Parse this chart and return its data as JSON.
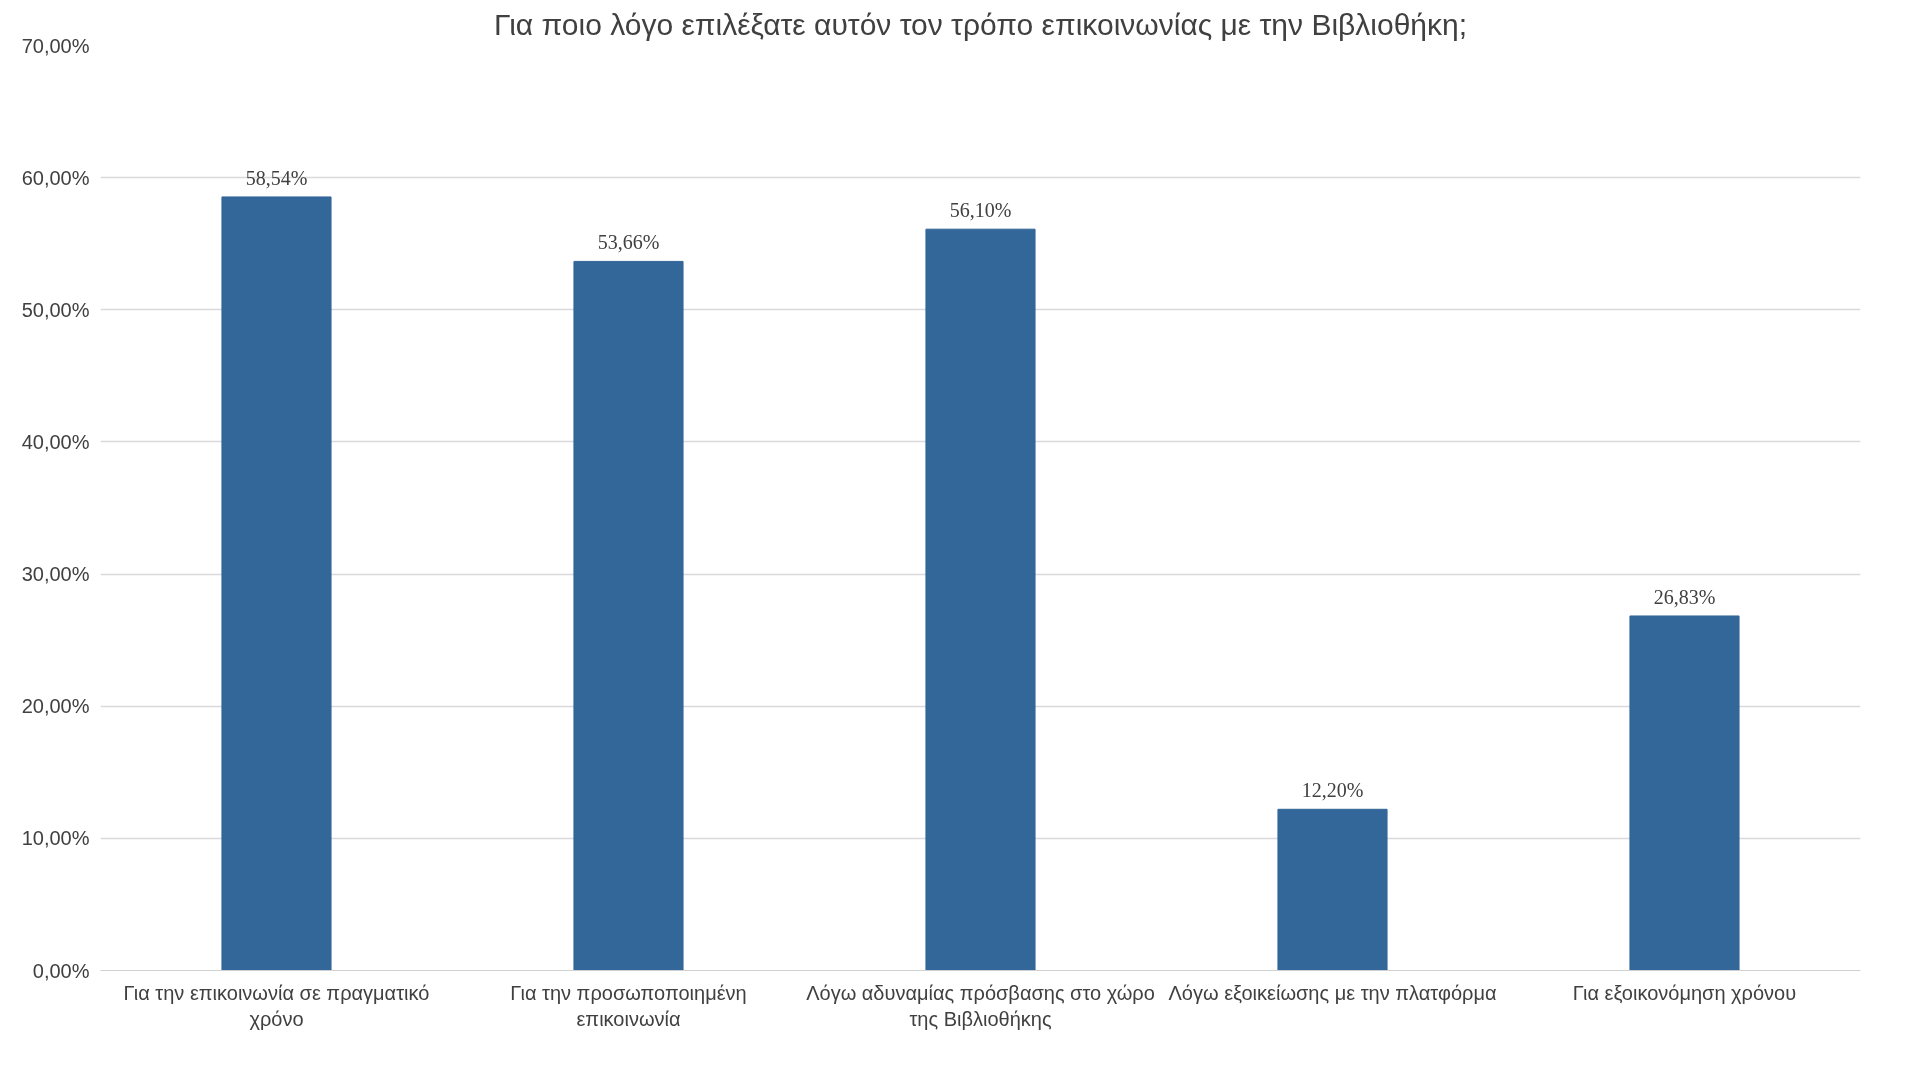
{
  "chart_data": {
    "type": "bar",
    "title": "Για ποιο λόγο επιλέξατε αυτόν τον τρόπο επικοινωνίας με την Βιβλιοθήκη;",
    "categories": [
      "Για την επικοινωνία σε πραγματικό χρόνο",
      "Για την προσωποποιημένη επικοινωνία",
      "Λόγω αδυναμίας πρόσβασης στο χώρο της Βιβλιοθήκης",
      "Λόγω εξοικείωσης με την πλατφόρμα",
      "Για εξοικονόμηση χρόνου"
    ],
    "values": [
      58.54,
      53.66,
      56.1,
      12.2,
      26.83
    ],
    "value_labels": [
      "58,54%",
      "53,66%",
      "56,10%",
      "12,20%",
      "26,83%"
    ],
    "color": "#336699",
    "ylim": [
      0,
      70
    ],
    "yticks": [
      {
        "value": 0,
        "label": "0,00%"
      },
      {
        "value": 10,
        "label": "10,00%"
      },
      {
        "value": 20,
        "label": "20,00%"
      },
      {
        "value": 30,
        "label": "30,00%"
      },
      {
        "value": 40,
        "label": "40,00%"
      },
      {
        "value": 50,
        "label": "50,00%"
      },
      {
        "value": 60,
        "label": "60,00%"
      },
      {
        "value": 70,
        "label": "70,00%"
      }
    ],
    "grid": "y"
  }
}
